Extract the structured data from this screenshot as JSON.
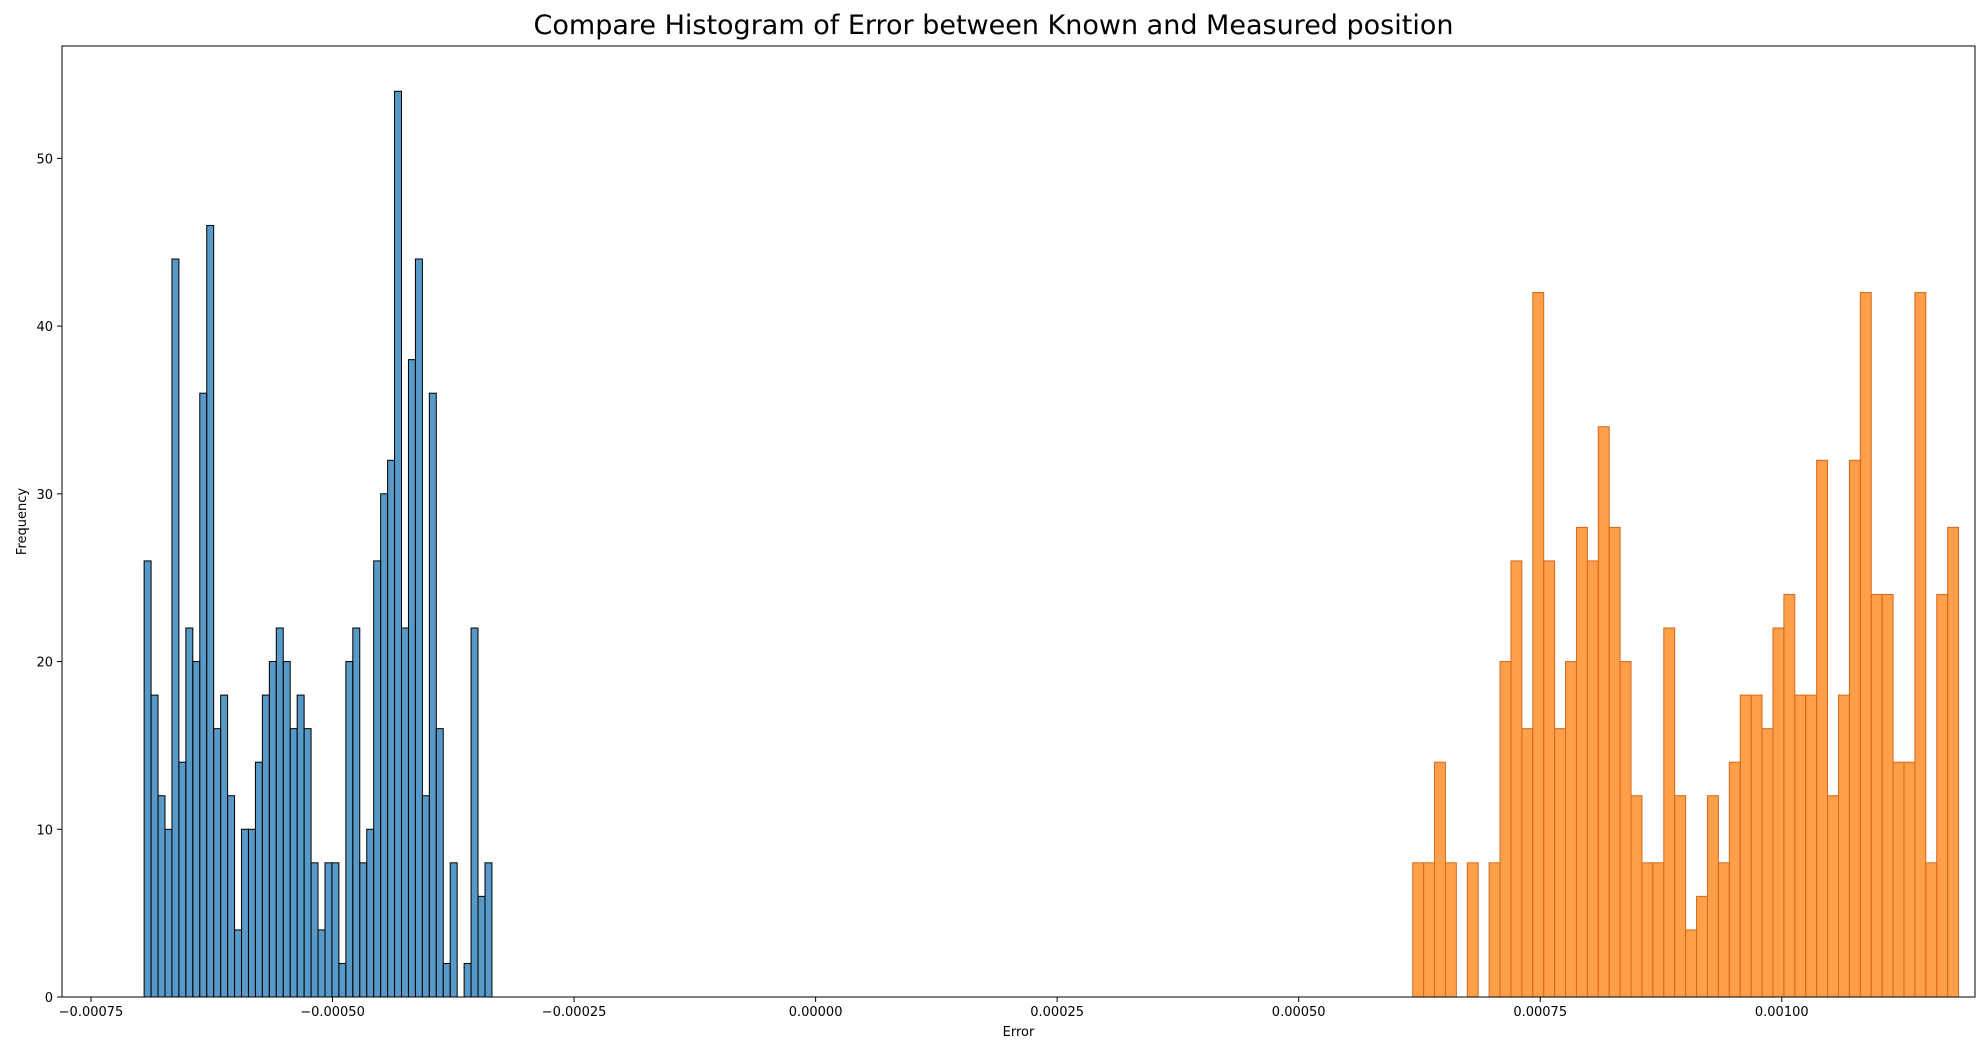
{
  "chart_data": {
    "type": "bar",
    "title": "Compare Histogram of Error between Known and Measured position",
    "xlabel": "Error",
    "ylabel": "Frequency",
    "xlim": [
      -0.00078,
      0.0012
    ],
    "ylim": [
      0,
      56.7
    ],
    "grid": false,
    "x_ticks": [
      {
        "value": -0.00075,
        "label": "−0.00075"
      },
      {
        "value": -0.0005,
        "label": "−0.00050"
      },
      {
        "value": -0.00025,
        "label": "−0.00025"
      },
      {
        "value": 0.0,
        "label": "0.00000"
      },
      {
        "value": 0.00025,
        "label": "0.00025"
      },
      {
        "value": 0.0005,
        "label": "0.00050"
      },
      {
        "value": 0.00075,
        "label": "0.00075"
      },
      {
        "value": 0.001,
        "label": "0.00100"
      }
    ],
    "y_ticks": [
      {
        "value": 0,
        "label": "0"
      },
      {
        "value": 10,
        "label": "10"
      },
      {
        "value": 20,
        "label": "20"
      },
      {
        "value": 30,
        "label": "30"
      },
      {
        "value": 40,
        "label": "40"
      },
      {
        "value": 50,
        "label": "50"
      }
    ],
    "series": [
      {
        "color": "#1f77b4",
        "alpha": 0.75,
        "edgecolor": "#000000",
        "bin_start": -0.000695,
        "bin_width": 7.2e-06,
        "values": [
          26,
          18,
          12,
          10,
          44,
          14,
          22,
          20,
          36,
          46,
          16,
          18,
          12,
          4,
          10,
          10,
          14,
          18,
          20,
          22,
          20,
          16,
          18,
          16,
          8,
          4,
          8,
          8,
          2,
          20,
          22,
          8,
          10,
          26,
          30,
          32,
          54,
          22,
          38,
          44,
          12,
          36,
          16,
          2,
          8,
          0,
          2,
          22,
          6,
          8
        ]
      },
      {
        "color": "#ff7f0e",
        "alpha": 0.75,
        "edgecolor": "#d8681a",
        "bin_start": 0.000618,
        "bin_width": 1.13e-05,
        "values": [
          8,
          8,
          14,
          8,
          0,
          8,
          0,
          8,
          20,
          26,
          16,
          42,
          26,
          16,
          20,
          28,
          26,
          34,
          28,
          20,
          12,
          8,
          8,
          22,
          12,
          4,
          6,
          12,
          8,
          14,
          18,
          18,
          16,
          22,
          24,
          18,
          18,
          32,
          12,
          18,
          32,
          42,
          24,
          24,
          14,
          14,
          42,
          8,
          24,
          28
        ]
      }
    ]
  }
}
